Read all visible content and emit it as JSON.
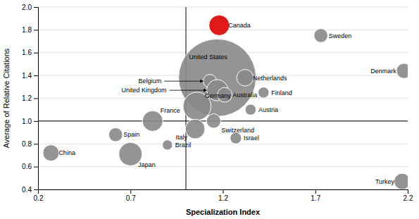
{
  "chart_data": {
    "type": "bubble",
    "x_label": "Specialization Index",
    "y_label": "Average of Relative Citations",
    "labels": [
      "Canada",
      "United States",
      "Belgium",
      "United Kingdom",
      "Netherlands",
      "Finland",
      "Australia",
      "Germany",
      "Austria",
      "Switzerland",
      "France",
      "Italy",
      "Israel",
      "Sweden",
      "Denmark",
      "Spain",
      "Japan",
      "Brazil",
      "China",
      "Turkey"
    ],
    "x": [
      1.18,
      1.17,
      1.13,
      1.17,
      1.32,
      1.42,
      1.21,
      1.06,
      1.35,
      1.15,
      0.82,
      1.05,
      1.27,
      1.73,
      2.18,
      0.62,
      0.7,
      0.9,
      0.27,
      2.17
    ],
    "values": [
      1.84,
      1.38,
      1.35,
      1.27,
      1.38,
      1.25,
      1.23,
      1.13,
      1.1,
      1.0,
      1.0,
      0.93,
      0.85,
      1.75,
      1.44,
      0.88,
      0.71,
      0.79,
      0.72,
      0.47
    ],
    "sizes": [
      350,
      5000,
      150,
      380,
      230,
      100,
      180,
      650,
      100,
      170,
      350,
      320,
      110,
      160,
      190,
      160,
      450,
      85,
      220,
      220
    ],
    "colors": [
      "#dd0000",
      "#888888",
      "#888888",
      "#888888",
      "#888888",
      "#888888",
      "#888888",
      "#888888",
      "#888888",
      "#888888",
      "#888888",
      "#888888",
      "#888888",
      "#888888",
      "#888888",
      "#888888",
      "#888888",
      "#888888",
      "#888888",
      "#888888"
    ],
    "xlim": [
      0.2,
      2.2
    ],
    "ylim": [
      0.4,
      2.0
    ],
    "xticks": [
      0.2,
      0.7,
      1.2,
      1.7,
      2.2
    ],
    "yticks": [
      0.4,
      0.6,
      0.8,
      {
        "value": 1,
        "label": "1.0"
      },
      1.2,
      1.4,
      1.6,
      1.8,
      {
        "value": 2,
        "label": "2.0"
      }
    ],
    "grid": "y",
    "reference_lines": [
      {
        "axis": "x",
        "value": 1.0
      },
      {
        "axis": "y",
        "value": 1.0
      }
    ]
  }
}
